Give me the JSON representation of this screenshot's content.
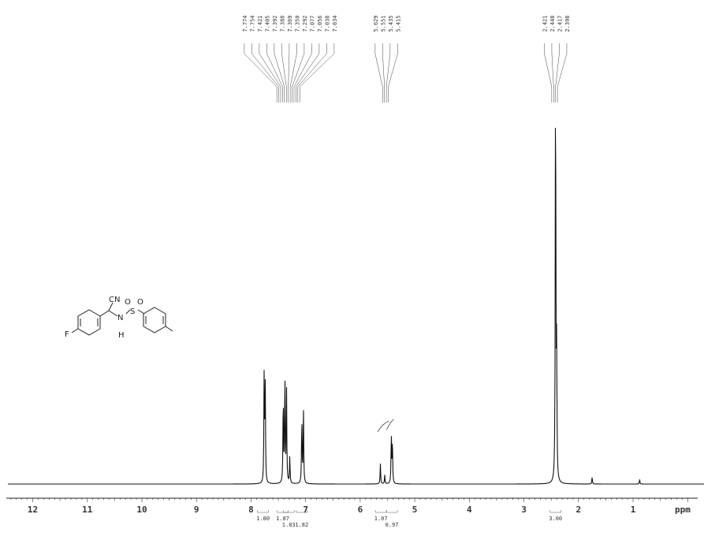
{
  "chart_data": {
    "type": "line",
    "xlabel": "ppm",
    "xlim": [
      12.6,
      -0.3
    ],
    "x_reversed": true,
    "x_ticks": [
      "12",
      "11",
      "10",
      "9",
      "8",
      "7",
      "6",
      "5",
      "4",
      "3",
      "2",
      "1"
    ],
    "grid": false,
    "peak_groups": [
      {
        "labels": [
          "7.774",
          "7.754",
          "7.421",
          "7.405",
          "7.392",
          "7.388",
          "7.369",
          "7.350",
          "7.292",
          "7.077",
          "7.056",
          "7.038",
          "7.034"
        ]
      },
      {
        "labels": [
          "5.629",
          "5.551",
          "5.435",
          "5.415"
        ]
      },
      {
        "labels": [
          "2.421",
          "2.448",
          "2.417",
          "2.398"
        ]
      }
    ],
    "peaks": [
      {
        "ppm": 7.76,
        "height": 0.24
      },
      {
        "ppm": 7.74,
        "height": 0.22
      },
      {
        "ppm": 7.41,
        "height": 0.2
      },
      {
        "ppm": 7.38,
        "height": 0.24
      },
      {
        "ppm": 7.35,
        "height": 0.21
      },
      {
        "ppm": 7.29,
        "height": 0.06
      },
      {
        "ppm": 7.07,
        "height": 0.15
      },
      {
        "ppm": 7.04,
        "height": 0.17
      },
      {
        "ppm": 5.63,
        "height": 0.045
      },
      {
        "ppm": 5.55,
        "height": 0.02
      },
      {
        "ppm": 5.43,
        "height": 0.11
      },
      {
        "ppm": 5.41,
        "height": 0.1
      },
      {
        "ppm": 2.42,
        "height": 0.97
      },
      {
        "ppm": 2.4,
        "height": 0.28
      },
      {
        "ppm": 1.75,
        "height": 0.015
      },
      {
        "ppm": 0.88,
        "height": 0.01
      }
    ],
    "integrals": [
      {
        "ppm": 7.78,
        "value": "1.80"
      },
      {
        "ppm": 7.42,
        "value": "1.87"
      },
      {
        "ppm": 7.31,
        "value": "1.83"
      },
      {
        "ppm": 7.07,
        "value": "1.82"
      },
      {
        "ppm": 5.62,
        "value": "1.07"
      },
      {
        "ppm": 5.42,
        "value": "0.97"
      },
      {
        "ppm": 2.42,
        "value": "3.00"
      }
    ]
  },
  "structure": {
    "atoms": {
      "cn": "CN",
      "n": "N",
      "h": "H",
      "s": "S",
      "o1": "O",
      "o2": "O",
      "f": "F"
    }
  }
}
